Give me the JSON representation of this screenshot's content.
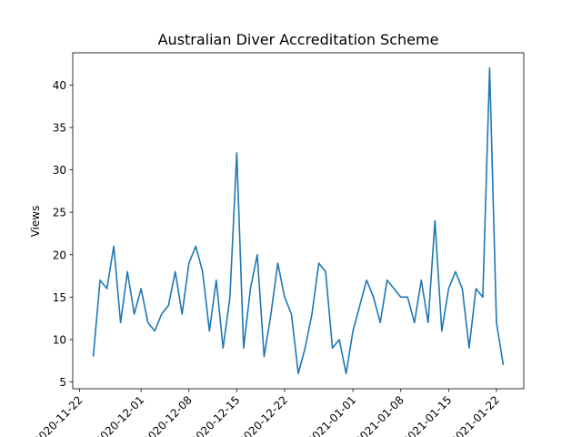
{
  "chart_data": {
    "type": "line",
    "title": "Australian Diver Accreditation Scheme",
    "xlabel": "",
    "ylabel": "Views",
    "x_start": "2020-11-24",
    "x_ticks": [
      "2020-11-22",
      "2020-12-01",
      "2020-12-08",
      "2020-12-15",
      "2020-12-22",
      "2021-01-01",
      "2021-01-08",
      "2021-01-15",
      "2021-01-22"
    ],
    "y_ticks": [
      5,
      10,
      15,
      20,
      25,
      30,
      35,
      40
    ],
    "ylim": [
      4.2,
      43.8
    ],
    "grid": false,
    "series": [
      {
        "name": "",
        "color": "#1f77b4",
        "values": [
          8,
          17,
          16,
          21,
          12,
          18,
          13,
          16,
          12,
          11,
          13,
          14,
          18,
          13,
          19,
          21,
          18,
          11,
          17,
          9,
          15,
          32,
          9,
          16,
          20,
          8,
          13,
          19,
          15,
          13,
          6,
          9,
          13,
          19,
          18,
          9,
          10,
          6,
          11,
          14,
          17,
          15,
          12,
          17,
          16,
          15,
          15,
          12,
          17,
          12,
          24,
          11,
          16,
          18,
          16,
          9,
          16,
          15,
          42,
          12,
          7
        ]
      }
    ]
  }
}
